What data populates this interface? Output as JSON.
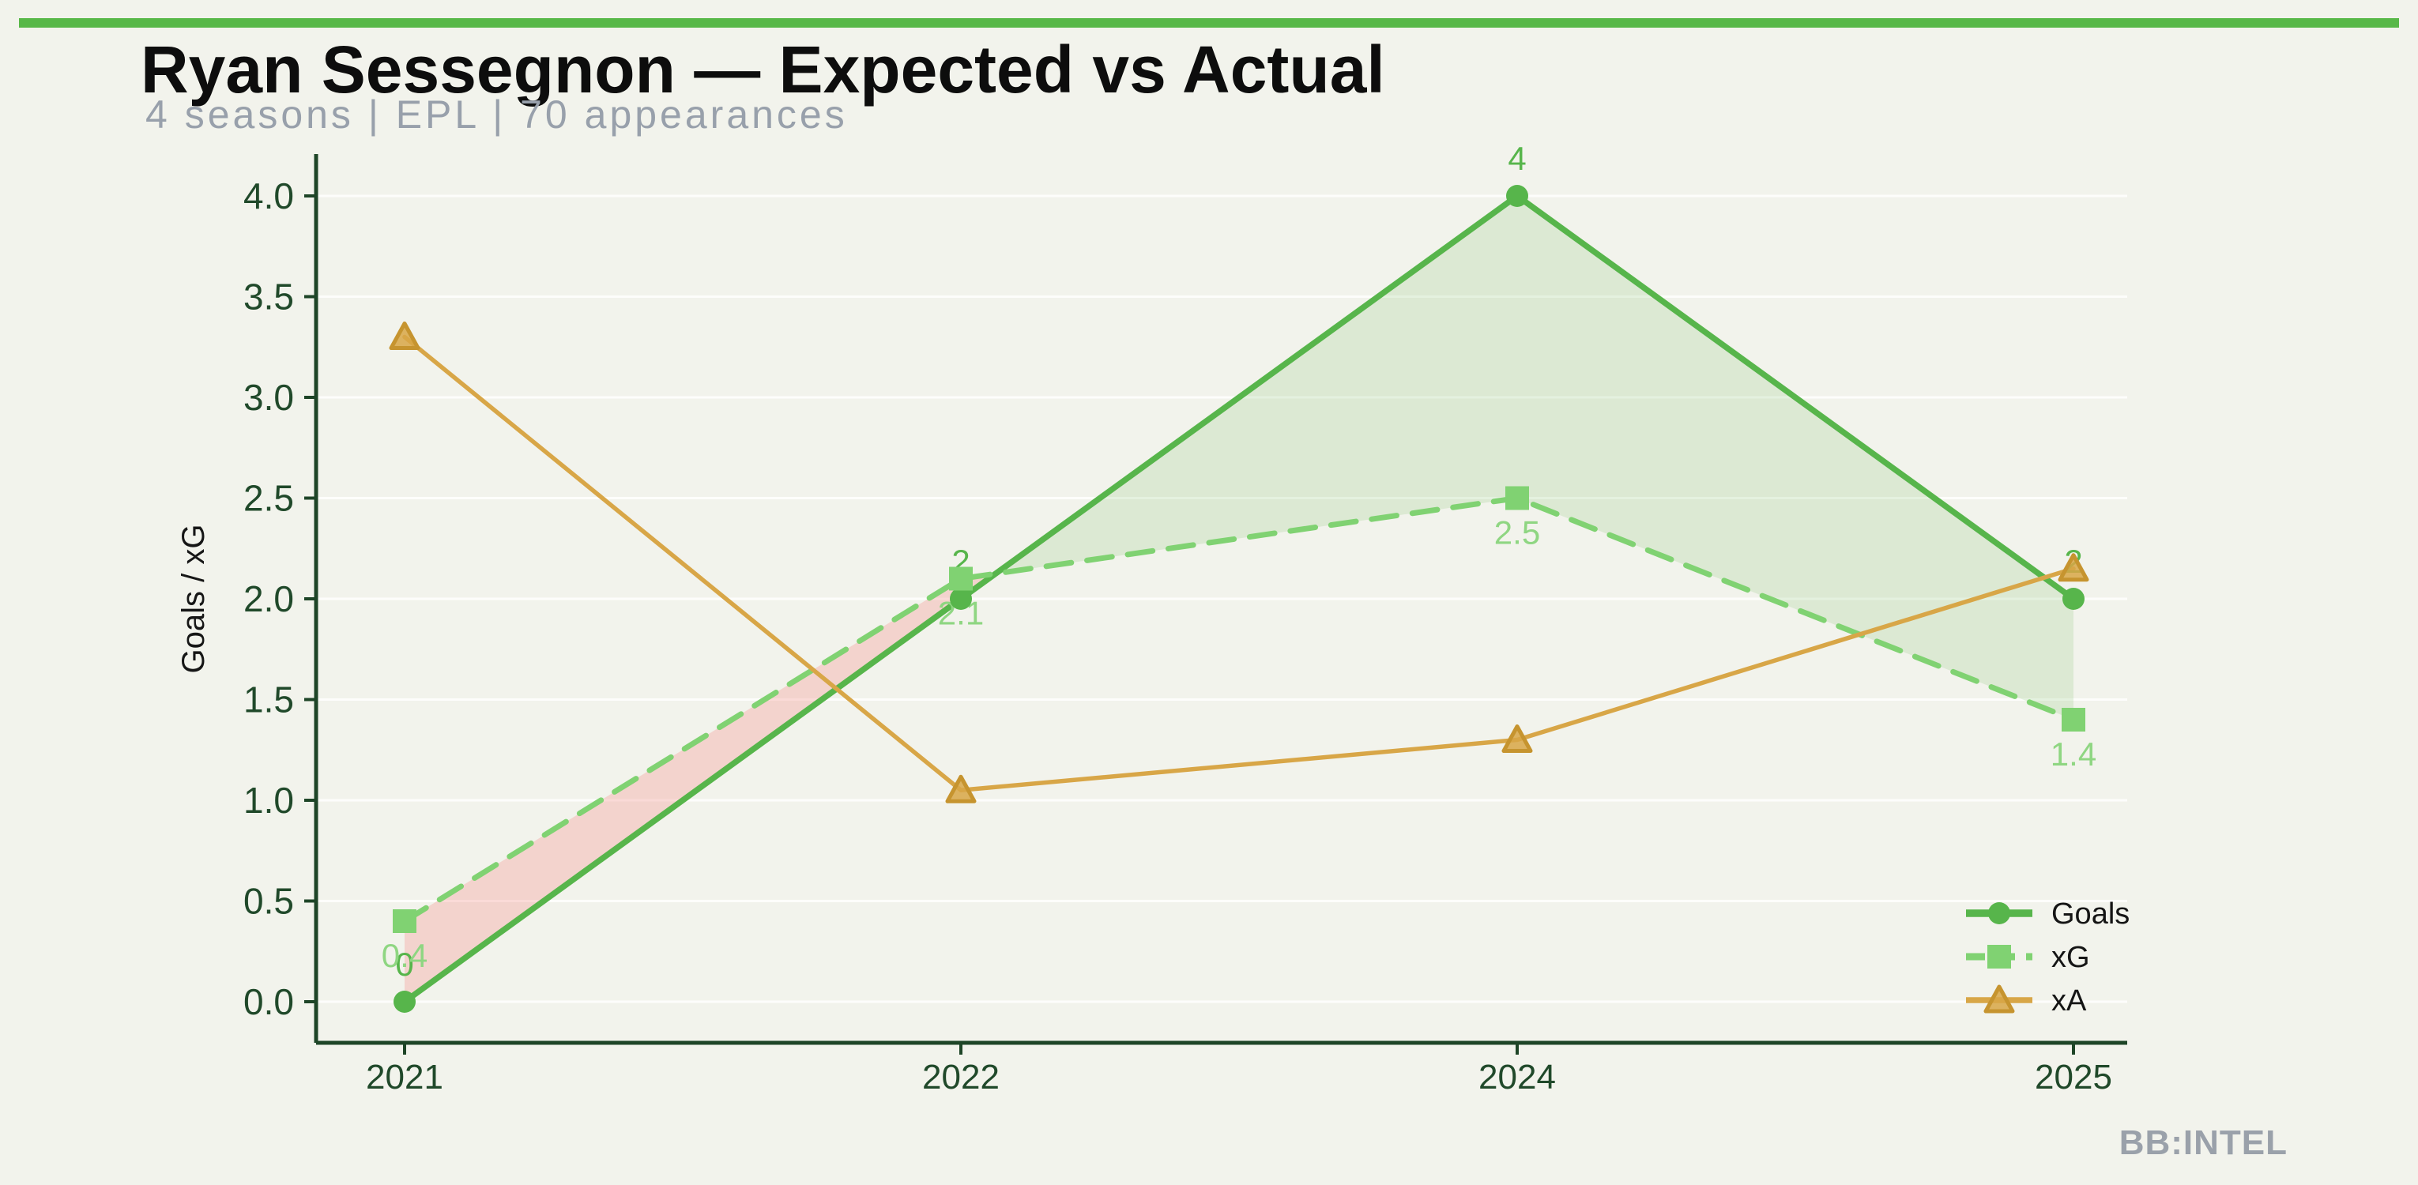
{
  "page": {
    "background": "#f2f3ec",
    "topbar_color": "#58b848",
    "watermark": "BB:INTEL"
  },
  "header": {
    "title": "Ryan Sessegnon — Expected vs Actual",
    "subtitle": "4 seasons | EPL | 70 appearances"
  },
  "chart_data": {
    "type": "line",
    "title": "Ryan Sessegnon — Expected vs Actual",
    "subtitle": "4 seasons | EPL | 70 appearances",
    "categories": [
      "2021",
      "2022",
      "2024",
      "2025"
    ],
    "series": [
      {
        "name": "Goals",
        "values": [
          0,
          2,
          4,
          2
        ],
        "labels": [
          "0",
          "2",
          "4",
          "2"
        ],
        "color": "#57b54b",
        "label_color": "#57b54b",
        "marker": "circle",
        "style": "solid"
      },
      {
        "name": "xG",
        "values": [
          0.4,
          2.1,
          2.5,
          1.4
        ],
        "labels": [
          "0.4",
          "2.1",
          "2.5",
          "1.4"
        ],
        "color": "#80d272",
        "label_color": "#8fd682",
        "marker": "square",
        "style": "dashed"
      },
      {
        "name": "xA",
        "values": [
          3.3,
          1.05,
          1.3,
          2.15
        ],
        "labels": null,
        "color": "#d8a647",
        "marker_stroke": "#c6942f",
        "marker": "triangle",
        "style": "solid"
      }
    ],
    "xlabel": "",
    "ylabel": "Goals / xG",
    "ylim": [
      0,
      4
    ],
    "yticks": {
      "values": [
        0,
        0.5,
        1,
        1.5,
        2,
        2.5,
        3,
        3.5,
        4
      ],
      "labels": [
        "0.0",
        "0.5",
        "1.0",
        "1.5",
        "2.0",
        "2.5",
        "3.0",
        "3.5",
        "4.0"
      ]
    },
    "grid": true,
    "fill_between": {
      "description": "shaded area between Goals and xG",
      "above_color": "rgba(142,202,122,0.22)",
      "below_color": "rgba(246,140,133,0.30)"
    },
    "legend": {
      "position": "lower right",
      "entries": [
        "Goals",
        "xG",
        "xA"
      ]
    },
    "colors": {
      "axis": "#1e4527",
      "tick_text": "#20492a",
      "axis_label_text": "#161616",
      "legend_text": "#151515",
      "grid": "#ffffff"
    }
  }
}
